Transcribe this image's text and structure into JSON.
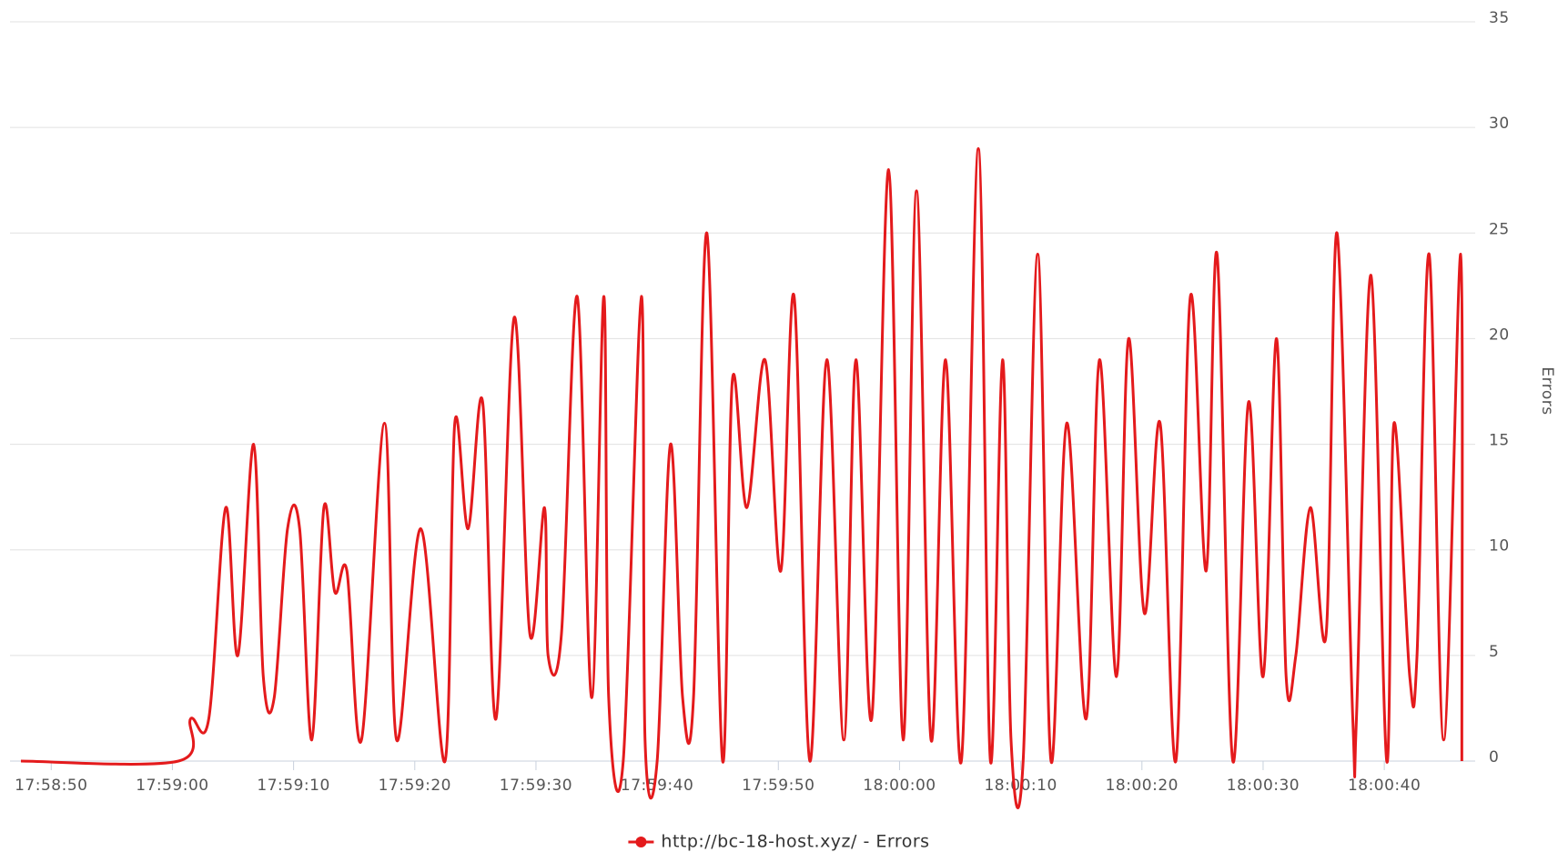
{
  "chart_data": {
    "type": "line",
    "ylabel": "Errors",
    "x": [
      "17:58:47.5",
      "17:59:00.5",
      "17:59:01.5",
      "17:59:03.0",
      "17:59:04.4",
      "17:59:05.4",
      "17:59:06.7",
      "17:59:07.5",
      "17:59:08.4",
      "17:59:09.5",
      "17:59:10.5",
      "17:59:11.5",
      "17:59:12.5",
      "17:59:13.4",
      "17:59:14.4",
      "17:59:15.6",
      "17:59:17.5",
      "17:59:18.5",
      "17:59:20.5",
      "17:59:22.5",
      "17:59:23.3",
      "17:59:24.4",
      "17:59:25.6",
      "17:59:26.7",
      "17:59:28.2",
      "17:59:29.5",
      "17:59:30.7",
      "17:59:31.0",
      "17:59:32.1",
      "17:59:33.4",
      "17:59:34.6",
      "17:59:35.6",
      "17:59:36.0",
      "17:59:37.2",
      "17:59:38.7",
      "17:59:39.0",
      "17:59:40.0",
      "17:59:41.1",
      "17:59:42.1",
      "17:59:43.0",
      "17:59:44.1",
      "17:59:45.4",
      "17:59:46.2",
      "17:59:47.4",
      "17:59:48.9",
      "17:59:50.2",
      "17:59:51.3",
      "17:59:52.6",
      "17:59:54.0",
      "17:59:55.4",
      "17:59:56.4",
      "17:59:57.7",
      "17:59:59.1",
      "18:00:00.3",
      "18:00:01.4",
      "18:00:02.6",
      "18:00:03.8",
      "18:00:05.1",
      "18:00:06.5",
      "18:00:07.5",
      "18:00:08.5",
      "18:00:09.2",
      "18:00:10.2",
      "18:00:11.4",
      "18:00:12.5",
      "18:00:13.8",
      "18:00:15.4",
      "18:00:16.5",
      "18:00:17.9",
      "18:00:18.9",
      "18:00:20.2",
      "18:00:21.5",
      "18:00:22.8",
      "18:00:24.0",
      "18:00:25.3",
      "18:00:26.2",
      "18:00:27.5",
      "18:00:28.8",
      "18:00:30.0",
      "18:00:31.1",
      "18:00:31.9",
      "18:00:32.7",
      "18:00:33.9",
      "18:00:35.2",
      "18:00:36.1",
      "18:00:37.4",
      "18:00:37.7",
      "18:00:38.9",
      "18:00:40.2",
      "18:00:40.8",
      "18:00:42.1",
      "18:00:42.7",
      "18:00:43.7",
      "18:00:44.9",
      "18:00:46.3",
      "18:00:46.4"
    ],
    "series": [
      {
        "name": "http://bc-18-host.xyz/ - Errors",
        "color": "#e41a1c",
        "values": [
          0,
          0,
          2,
          2,
          12,
          5,
          15,
          4,
          3,
          11,
          11,
          1,
          12,
          8,
          9,
          1,
          16,
          1,
          11,
          0,
          16,
          11,
          17,
          2,
          21,
          6,
          12,
          5,
          6,
          22,
          3,
          22,
          3,
          0,
          22,
          1,
          0,
          15,
          3,
          3,
          25,
          0,
          18,
          12,
          19,
          9,
          22,
          0,
          19,
          1,
          19,
          2,
          28,
          1,
          27,
          1,
          19,
          0,
          29,
          0,
          19,
          1,
          0,
          24,
          0,
          16,
          2,
          19,
          4,
          20,
          7,
          16,
          0,
          22,
          9,
          24,
          0,
          17,
          4,
          20,
          4,
          5,
          12,
          6,
          25,
          2,
          2,
          23,
          0,
          16,
          4,
          5,
          24,
          1,
          24,
          0
        ]
      }
    ],
    "xlim": [
      "17:58:46.6",
      "18:00:47.5"
    ],
    "xticks": [
      "17:58:50",
      "17:59:00",
      "17:59:10",
      "17:59:20",
      "17:59:30",
      "17:59:40",
      "17:59:50",
      "18:00:00",
      "18:00:10",
      "18:00:20",
      "18:00:30",
      "18:00:40"
    ],
    "ylim": [
      0,
      35
    ],
    "yticks": [
      0,
      5,
      10,
      15,
      20,
      25,
      30,
      35
    ],
    "grid": true,
    "legend": "bottom"
  }
}
